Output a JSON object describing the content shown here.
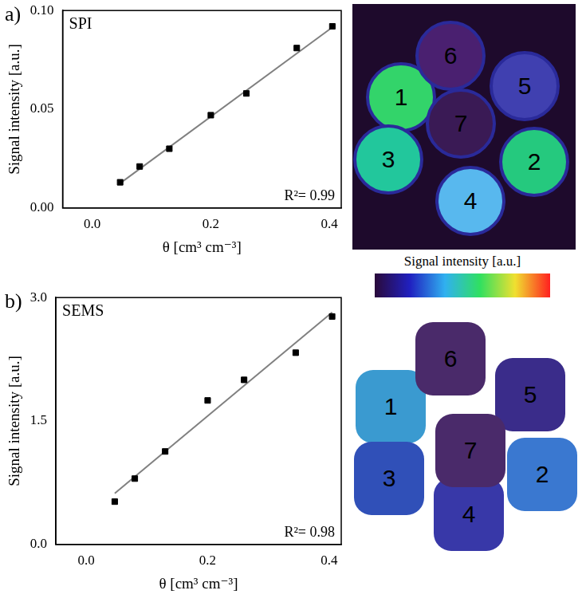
{
  "chart_data": [
    {
      "type": "scatter",
      "panel_label": "a)",
      "title": "SPI",
      "x_label": "θ [cm³ cm⁻³]",
      "y_label": "Signal intensity [a.u.]",
      "annotations": [
        "R²= 0.99"
      ],
      "xlim": [
        -0.05,
        0.42
      ],
      "xticks": [
        {
          "value": 0,
          "label": "0.0"
        },
        {
          "value": 0.2,
          "label": "0.2"
        },
        {
          "value": 0.4,
          "label": "0.4"
        }
      ],
      "ylim": [
        0,
        0.1
      ],
      "yticks": [
        {
          "value": 0,
          "label": "0.00"
        },
        {
          "value": 0.05,
          "label": "0.05"
        },
        {
          "value": 0.1,
          "label": "0.10"
        }
      ],
      "grid": false,
      "series": [
        {
          "type": "scatter",
          "marker": "square",
          "color": "#000000",
          "x": [
            0.047,
            0.08,
            0.13,
            0.2,
            0.26,
            0.345,
            0.405
          ],
          "values": [
            0.013,
            0.021,
            0.03,
            0.047,
            0.058,
            0.081,
            0.092
          ]
        },
        {
          "type": "line",
          "line_style": "solid",
          "color": "#808080",
          "x": [
            0.047,
            0.405
          ],
          "values": [
            0.0125,
            0.0915
          ]
        }
      ]
    },
    {
      "type": "scatter",
      "panel_label": "b)",
      "title": "SEMS",
      "x_label": "θ [cm³ cm⁻³]",
      "y_label": "Signal intensity [a.u.]",
      "annotations": [
        "R²= 0.98"
      ],
      "xlim": [
        -0.05,
        0.42
      ],
      "xticks": [
        {
          "value": 0,
          "label": "0.0"
        },
        {
          "value": 0.2,
          "label": "0.2"
        },
        {
          "value": 0.4,
          "label": "0.4"
        }
      ],
      "ylim": [
        0,
        3
      ],
      "yticks": [
        {
          "value": 0,
          "label": "0.0"
        },
        {
          "value": 1.5,
          "label": "1.5"
        },
        {
          "value": 3,
          "label": "3.0"
        }
      ],
      "grid": false,
      "series": [
        {
          "type": "scatter",
          "marker": "square",
          "color": "#000000",
          "x": [
            0.047,
            0.08,
            0.13,
            0.2,
            0.26,
            0.345,
            0.405
          ],
          "values": [
            0.52,
            0.8,
            1.13,
            1.75,
            2.0,
            2.33,
            2.77
          ]
        },
        {
          "type": "line",
          "line_style": "solid",
          "color": "#808080",
          "x": [
            0.047,
            0.405
          ],
          "values": [
            0.62,
            2.82
          ]
        }
      ]
    }
  ],
  "images": [
    {
      "marker": "circle",
      "samples": [
        {
          "label": "1",
          "color": "#33d46a"
        },
        {
          "label": "2",
          "color": "#25c97e"
        },
        {
          "label": "3",
          "color": "#22c79c"
        },
        {
          "label": "4",
          "color": "#58b8ee"
        },
        {
          "label": "5",
          "color": "#4040b0"
        },
        {
          "label": "6",
          "color": "#4a2070"
        },
        {
          "label": "7",
          "color": "#3a1a55"
        }
      ],
      "colorbar": {
        "title": "Signal intensity [a.u.]",
        "colors": [
          "#2a0a3a",
          "#2020c0",
          "#30b0f0",
          "#30e060",
          "#f0e030",
          "#ff2020"
        ]
      }
    },
    {
      "marker": "square",
      "samples": [
        {
          "label": "1",
          "color": "#3a9ad0"
        },
        {
          "label": "2",
          "color": "#3a78d0"
        },
        {
          "label": "3",
          "color": "#3050b8"
        },
        {
          "label": "4",
          "color": "#3838a8"
        },
        {
          "label": "5",
          "color": "#3a2c8a"
        },
        {
          "label": "6",
          "color": "#4a2a6a"
        },
        {
          "label": "7",
          "color": "#4a2a6a"
        }
      ]
    }
  ]
}
